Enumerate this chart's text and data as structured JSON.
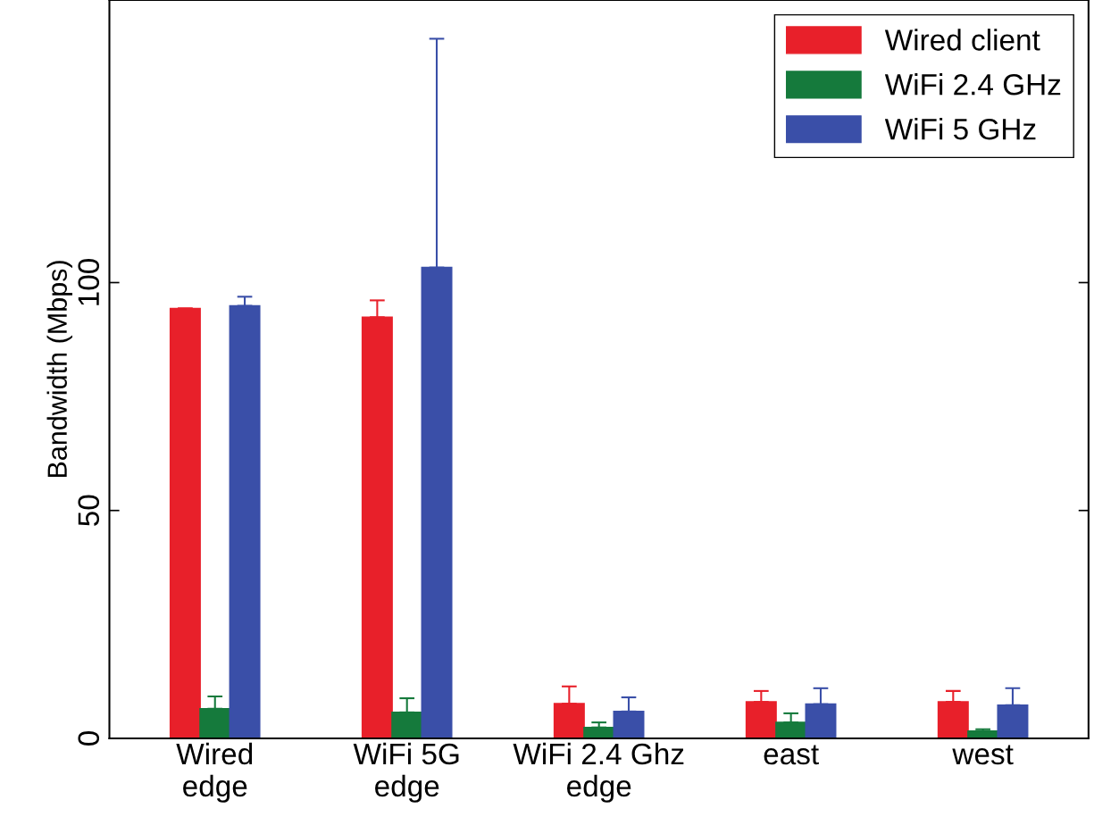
{
  "chart_data": {
    "type": "bar",
    "ylabel": "Bandwidth (Mbps)",
    "categories": [
      "Wired\nedge",
      "WiFi 5G\nedge",
      "WiFi 2.4 Ghz\nedge",
      "east",
      "west"
    ],
    "series": [
      {
        "name": "Wired client",
        "color": "#e8202a",
        "values": [
          94.3,
          92.4,
          7.6,
          8,
          8
        ],
        "errors": [
          null,
          [
            92.4,
            96.1
          ],
          [
            7.6,
            11.4
          ],
          [
            8,
            10.4
          ],
          [
            8,
            10.4
          ]
        ]
      },
      {
        "name": "WiFi 2.4 GHz",
        "color": "#157a3c",
        "values": [
          6.5,
          5.7,
          2.4,
          3.5,
          1.6
        ],
        "errors": [
          [
            6.5,
            9.2
          ],
          [
            5.7,
            8.8
          ],
          [
            2.4,
            3.5
          ],
          [
            3.5,
            5.5
          ],
          [
            1.6,
            2.0
          ]
        ]
      },
      {
        "name": "WiFi 5 GHz",
        "color": "#3a4fa8",
        "values": [
          94.9,
          103.3,
          5.9,
          7.5,
          7.3
        ],
        "errors": [
          [
            94.9,
            96.9
          ],
          [
            103.3,
            153.5
          ],
          [
            5.9,
            9.0
          ],
          [
            7.5,
            11.0
          ],
          [
            7.3,
            11.0
          ]
        ]
      }
    ],
    "ylim": [
      0,
      162
    ],
    "yticks": [
      0,
      50,
      100
    ],
    "grid": false,
    "legend": "top right"
  }
}
